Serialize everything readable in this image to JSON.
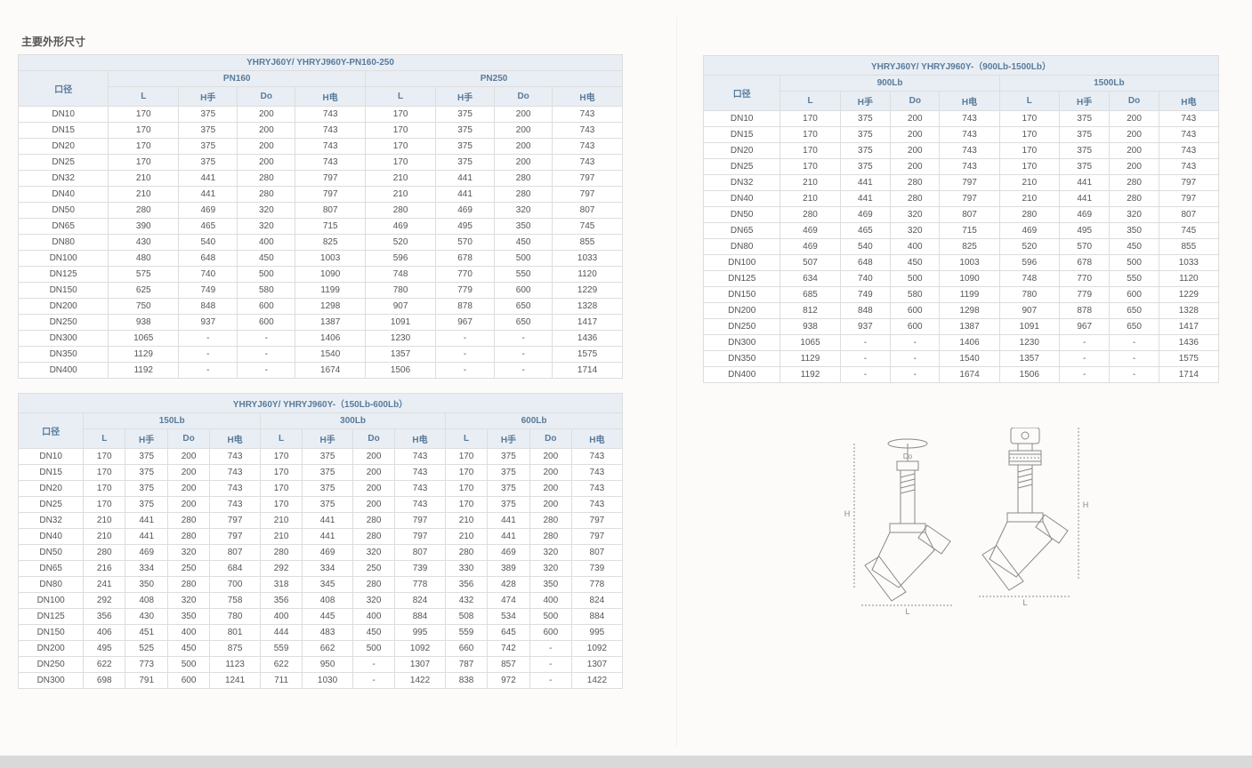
{
  "section_title": "主要外形尺寸",
  "colors": {
    "header_bg": "#e8eef4",
    "header_fg": "#5a7a9a",
    "border": "#ddd",
    "text": "#555"
  },
  "table1": {
    "title": "YHRYJ60Y/ YHRYJ960Y-PN160-250",
    "groups": [
      "PN160",
      "PN250"
    ],
    "subs": [
      "L",
      "H手",
      "Do",
      "H电"
    ],
    "rowhead": "口径",
    "rows": [
      [
        "DN10",
        "170",
        "375",
        "200",
        "743",
        "170",
        "375",
        "200",
        "743"
      ],
      [
        "DN15",
        "170",
        "375",
        "200",
        "743",
        "170",
        "375",
        "200",
        "743"
      ],
      [
        "DN20",
        "170",
        "375",
        "200",
        "743",
        "170",
        "375",
        "200",
        "743"
      ],
      [
        "DN25",
        "170",
        "375",
        "200",
        "743",
        "170",
        "375",
        "200",
        "743"
      ],
      [
        "DN32",
        "210",
        "441",
        "280",
        "797",
        "210",
        "441",
        "280",
        "797"
      ],
      [
        "DN40",
        "210",
        "441",
        "280",
        "797",
        "210",
        "441",
        "280",
        "797"
      ],
      [
        "DN50",
        "280",
        "469",
        "320",
        "807",
        "280",
        "469",
        "320",
        "807"
      ],
      [
        "DN65",
        "390",
        "465",
        "320",
        "715",
        "469",
        "495",
        "350",
        "745"
      ],
      [
        "DN80",
        "430",
        "540",
        "400",
        "825",
        "520",
        "570",
        "450",
        "855"
      ],
      [
        "DN100",
        "480",
        "648",
        "450",
        "1003",
        "596",
        "678",
        "500",
        "1033"
      ],
      [
        "DN125",
        "575",
        "740",
        "500",
        "1090",
        "748",
        "770",
        "550",
        "1120"
      ],
      [
        "DN150",
        "625",
        "749",
        "580",
        "1199",
        "780",
        "779",
        "600",
        "1229"
      ],
      [
        "DN200",
        "750",
        "848",
        "600",
        "1298",
        "907",
        "878",
        "650",
        "1328"
      ],
      [
        "DN250",
        "938",
        "937",
        "600",
        "1387",
        "1091",
        "967",
        "650",
        "1417"
      ],
      [
        "DN300",
        "1065",
        "-",
        "-",
        "1406",
        "1230",
        "-",
        "-",
        "1436"
      ],
      [
        "DN350",
        "1129",
        "-",
        "-",
        "1540",
        "1357",
        "-",
        "-",
        "1575"
      ],
      [
        "DN400",
        "1192",
        "-",
        "-",
        "1674",
        "1506",
        "-",
        "-",
        "1714"
      ]
    ]
  },
  "table2": {
    "title": "YHRYJ60Y/ YHRYJ960Y-（150Lb-600Lb）",
    "groups": [
      "150Lb",
      "300Lb",
      "600Lb"
    ],
    "subs": [
      "L",
      "H手",
      "Do",
      "H电"
    ],
    "rowhead": "口径",
    "rows": [
      [
        "DN10",
        "170",
        "375",
        "200",
        "743",
        "170",
        "375",
        "200",
        "743",
        "170",
        "375",
        "200",
        "743"
      ],
      [
        "DN15",
        "170",
        "375",
        "200",
        "743",
        "170",
        "375",
        "200",
        "743",
        "170",
        "375",
        "200",
        "743"
      ],
      [
        "DN20",
        "170",
        "375",
        "200",
        "743",
        "170",
        "375",
        "200",
        "743",
        "170",
        "375",
        "200",
        "743"
      ],
      [
        "DN25",
        "170",
        "375",
        "200",
        "743",
        "170",
        "375",
        "200",
        "743",
        "170",
        "375",
        "200",
        "743"
      ],
      [
        "DN32",
        "210",
        "441",
        "280",
        "797",
        "210",
        "441",
        "280",
        "797",
        "210",
        "441",
        "280",
        "797"
      ],
      [
        "DN40",
        "210",
        "441",
        "280",
        "797",
        "210",
        "441",
        "280",
        "797",
        "210",
        "441",
        "280",
        "797"
      ],
      [
        "DN50",
        "280",
        "469",
        "320",
        "807",
        "280",
        "469",
        "320",
        "807",
        "280",
        "469",
        "320",
        "807"
      ],
      [
        "DN65",
        "216",
        "334",
        "250",
        "684",
        "292",
        "334",
        "250",
        "739",
        "330",
        "389",
        "320",
        "739"
      ],
      [
        "DN80",
        "241",
        "350",
        "280",
        "700",
        "318",
        "345",
        "280",
        "778",
        "356",
        "428",
        "350",
        "778"
      ],
      [
        "DN100",
        "292",
        "408",
        "320",
        "758",
        "356",
        "408",
        "320",
        "824",
        "432",
        "474",
        "400",
        "824"
      ],
      [
        "DN125",
        "356",
        "430",
        "350",
        "780",
        "400",
        "445",
        "400",
        "884",
        "508",
        "534",
        "500",
        "884"
      ],
      [
        "DN150",
        "406",
        "451",
        "400",
        "801",
        "444",
        "483",
        "450",
        "995",
        "559",
        "645",
        "600",
        "995"
      ],
      [
        "DN200",
        "495",
        "525",
        "450",
        "875",
        "559",
        "662",
        "500",
        "1092",
        "660",
        "742",
        "-",
        "1092"
      ],
      [
        "DN250",
        "622",
        "773",
        "500",
        "1123",
        "622",
        "950",
        "-",
        "1307",
        "787",
        "857",
        "-",
        "1307"
      ],
      [
        "DN300",
        "698",
        "791",
        "600",
        "1241",
        "711",
        "1030",
        "-",
        "1422",
        "838",
        "972",
        "-",
        "1422"
      ]
    ]
  },
  "table3": {
    "title": "YHRYJ60Y/ YHRYJ960Y-（900Lb-1500Lb）",
    "groups": [
      "900Lb",
      "1500Lb"
    ],
    "subs": [
      "L",
      "H手",
      "Do",
      "H电"
    ],
    "rowhead": "口径",
    "rows": [
      [
        "DN10",
        "170",
        "375",
        "200",
        "743",
        "170",
        "375",
        "200",
        "743"
      ],
      [
        "DN15",
        "170",
        "375",
        "200",
        "743",
        "170",
        "375",
        "200",
        "743"
      ],
      [
        "DN20",
        "170",
        "375",
        "200",
        "743",
        "170",
        "375",
        "200",
        "743"
      ],
      [
        "DN25",
        "170",
        "375",
        "200",
        "743",
        "170",
        "375",
        "200",
        "743"
      ],
      [
        "DN32",
        "210",
        "441",
        "280",
        "797",
        "210",
        "441",
        "280",
        "797"
      ],
      [
        "DN40",
        "210",
        "441",
        "280",
        "797",
        "210",
        "441",
        "280",
        "797"
      ],
      [
        "DN50",
        "280",
        "469",
        "320",
        "807",
        "280",
        "469",
        "320",
        "807"
      ],
      [
        "DN65",
        "469",
        "465",
        "320",
        "715",
        "469",
        "495",
        "350",
        "745"
      ],
      [
        "DN80",
        "469",
        "540",
        "400",
        "825",
        "520",
        "570",
        "450",
        "855"
      ],
      [
        "DN100",
        "507",
        "648",
        "450",
        "1003",
        "596",
        "678",
        "500",
        "1033"
      ],
      [
        "DN125",
        "634",
        "740",
        "500",
        "1090",
        "748",
        "770",
        "550",
        "1120"
      ],
      [
        "DN150",
        "685",
        "749",
        "580",
        "1199",
        "780",
        "779",
        "600",
        "1229"
      ],
      [
        "DN200",
        "812",
        "848",
        "600",
        "1298",
        "907",
        "878",
        "650",
        "1328"
      ],
      [
        "DN250",
        "938",
        "937",
        "600",
        "1387",
        "1091",
        "967",
        "650",
        "1417"
      ],
      [
        "DN300",
        "1065",
        "-",
        "-",
        "1406",
        "1230",
        "-",
        "-",
        "1436"
      ],
      [
        "DN350",
        "1129",
        "-",
        "-",
        "1540",
        "1357",
        "-",
        "-",
        "1575"
      ],
      [
        "DN400",
        "1192",
        "-",
        "-",
        "1674",
        "1506",
        "-",
        "-",
        "1714"
      ]
    ]
  },
  "diagram": {
    "label_L": "L",
    "label_H": "H",
    "label_Do": "Do"
  }
}
